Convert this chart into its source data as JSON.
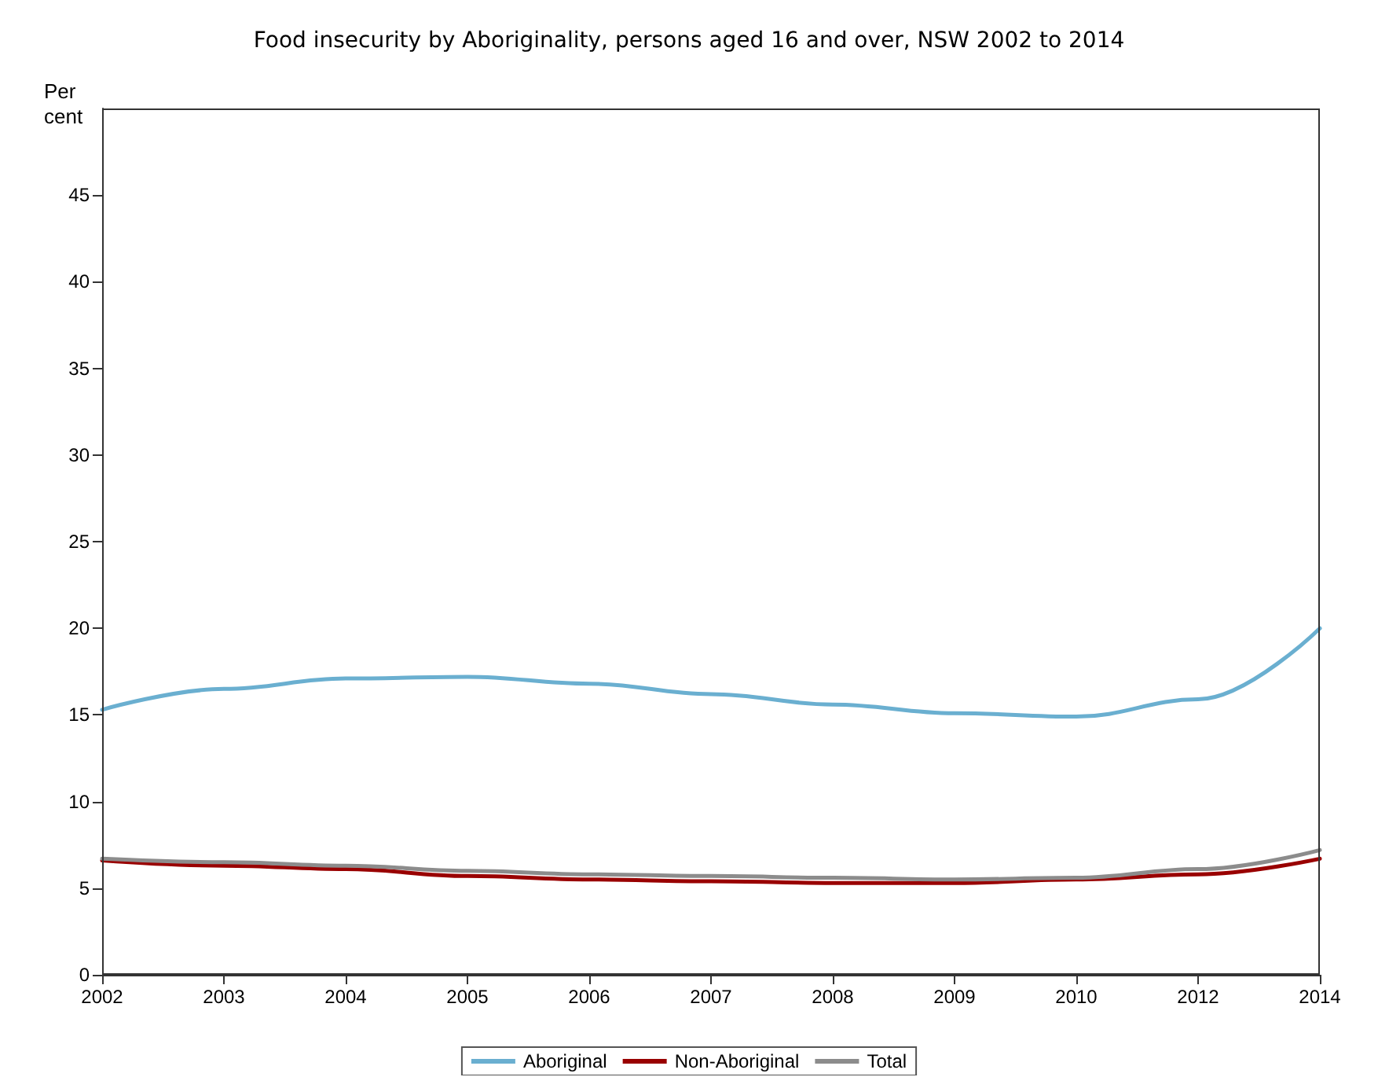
{
  "chart_data": {
    "type": "line",
    "title": "Food insecurity by Aboriginality, persons aged 16 and over, NSW 2002 to 2014",
    "ylabel": "Per\ncent",
    "categories": [
      "2002",
      "2003",
      "2004",
      "2005",
      "2006",
      "2007",
      "2008",
      "2009",
      "2010",
      "2012",
      "2014"
    ],
    "series": [
      {
        "name": "Aboriginal",
        "color": "#6aafd0",
        "values": [
          15.3,
          16.5,
          17.1,
          17.2,
          16.8,
          16.2,
          15.6,
          15.1,
          14.9,
          15.9,
          20.0
        ]
      },
      {
        "name": "Non-Aboriginal",
        "color": "#990000",
        "values": [
          6.6,
          6.3,
          6.1,
          5.7,
          5.5,
          5.4,
          5.3,
          5.3,
          5.5,
          5.8,
          6.7
        ]
      },
      {
        "name": "Total",
        "color": "#8c8c8c",
        "values": [
          6.7,
          6.5,
          6.3,
          6.0,
          5.8,
          5.7,
          5.6,
          5.5,
          5.6,
          6.1,
          7.2
        ]
      }
    ],
    "ylim": [
      0,
      50
    ],
    "yticks": [
      0,
      5,
      10,
      15,
      20,
      25,
      30,
      35,
      40,
      45
    ],
    "grid": false,
    "legend": "bottom",
    "marker": "none",
    "line_style": "solid"
  }
}
